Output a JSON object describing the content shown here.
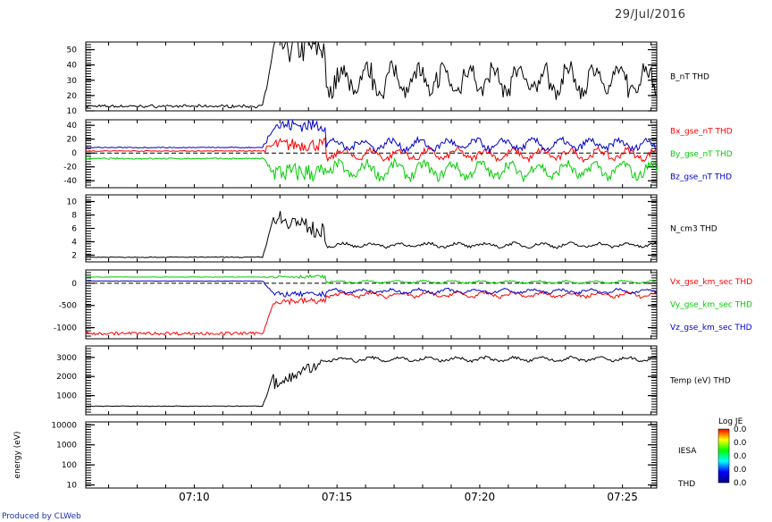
{
  "date_label": "29/Jul/2016",
  "credit": "Produced by CLWeb",
  "chart_data": [
    {
      "type": "line",
      "title": "",
      "ylim": [
        10,
        55
      ],
      "yticks": [
        10,
        20,
        30,
        40,
        50
      ],
      "series": [
        {
          "name": "B_nT THD",
          "color": "#000000",
          "style": "magnitude",
          "base": 13,
          "jump": 52,
          "post": 30,
          "amp": 10
        }
      ]
    },
    {
      "type": "line",
      "ylim": [
        -50,
        48
      ],
      "yticks": [
        -40,
        -20,
        0,
        20,
        40
      ],
      "zero_line": true,
      "series": [
        {
          "name": "Bx_gse_nT THD",
          "color": "#ff0000",
          "base": 3,
          "jump": 12,
          "post": -2,
          "amp": 8
        },
        {
          "name": "By_gse_nT THD",
          "color": "#00cc00",
          "base": -8,
          "jump": -28,
          "post": -25,
          "amp": 12
        },
        {
          "name": "Bz_gse_nT THD",
          "color": "#0000cc",
          "base": 8,
          "jump": 40,
          "post": 12,
          "amp": 8
        }
      ]
    },
    {
      "type": "line",
      "ylim": [
        1,
        11
      ],
      "yticks": [
        2,
        4,
        6,
        8,
        10
      ],
      "series": [
        {
          "name": "N_cm3 THD",
          "color": "#000000",
          "style": "density",
          "base": 1.7,
          "jump": 8,
          "post": 3.5,
          "amp": 0.35
        }
      ]
    },
    {
      "type": "line",
      "ylim": [
        -1250,
        300
      ],
      "yticks": [
        -1000,
        -500,
        0
      ],
      "zero_line": true,
      "series": [
        {
          "name": "Vx_gse_km_sec THD",
          "color": "#ff0000",
          "base": -1130,
          "jump": -400,
          "post": -260,
          "amp": 60
        },
        {
          "name": "Vy_gse_km_sec THD",
          "color": "#00cc00",
          "base": 140,
          "jump": 150,
          "post": 30,
          "amp": 30
        },
        {
          "name": "Vz_gse_km_sec THD",
          "color": "#0000cc",
          "base": 50,
          "jump": -250,
          "post": -180,
          "amp": 50
        }
      ]
    },
    {
      "type": "line",
      "ylim": [
        0,
        3600
      ],
      "yticks": [
        1000,
        2000,
        3000
      ],
      "series": [
        {
          "name": "Temp (eV) THD",
          "color": "#000000",
          "style": "temp",
          "base": 450,
          "jump": 2200,
          "post": 2900,
          "amp": 120
        }
      ]
    },
    {
      "type": "heatmap",
      "ylabel": "energy (eV)",
      "ylim": [
        7,
        14000
      ],
      "log_y": true,
      "yticks": [
        10,
        100,
        1000,
        10000
      ],
      "right_labels": [
        "IESA",
        "THD"
      ],
      "colorbar": {
        "title": "Log JE",
        "ticks": [
          "0.0",
          "0.0",
          "0.0",
          "0.0",
          "0.0"
        ]
      }
    }
  ],
  "x_axis": {
    "start_min": 6.2,
    "end_min": 26.2,
    "tick_labels": [
      "07:10",
      "07:15",
      "07:20",
      "07:25"
    ],
    "tick_values_min": [
      10,
      15,
      20,
      25
    ]
  }
}
